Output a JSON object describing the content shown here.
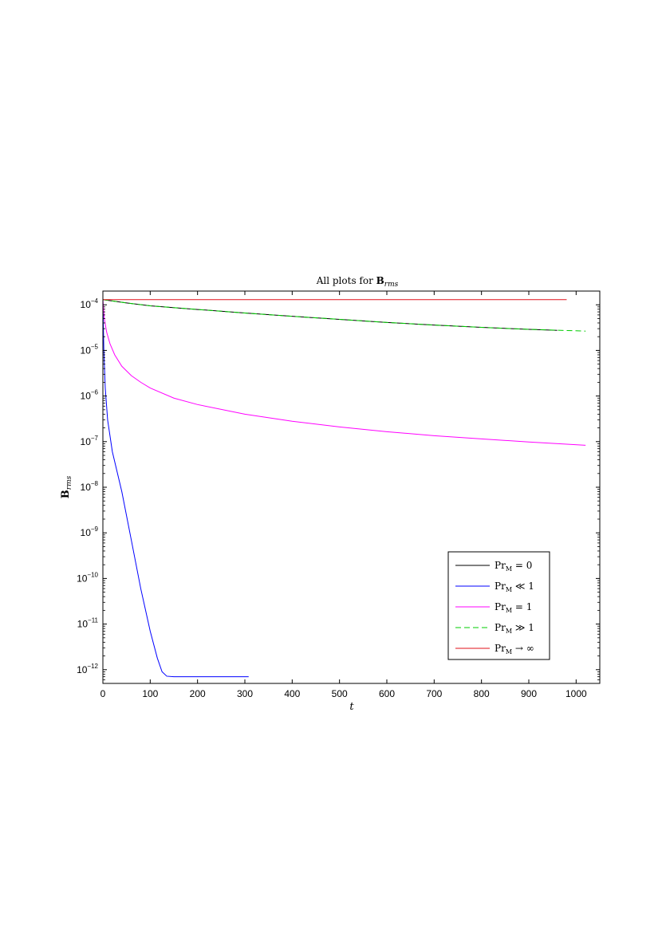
{
  "chart_data": {
    "type": "line",
    "title": {
      "prefix": "All plots for ",
      "symbol": "B",
      "subscript": "rms"
    },
    "xlabel": "t",
    "ylabel": {
      "symbol": "B",
      "subscript": "rms"
    },
    "xlim": [
      0,
      1050
    ],
    "ylim": [
      5e-13,
      0.0002
    ],
    "yscale": "log",
    "grid": false,
    "legend_position": "bottom-right",
    "x_ticks": [
      0,
      100,
      200,
      300,
      400,
      500,
      600,
      700,
      800,
      900,
      1000
    ],
    "x_tick_labels": [
      "0",
      "100",
      "200",
      "300",
      "400",
      "500",
      "600",
      "700",
      "800",
      "900",
      "1000"
    ],
    "y_ticks": [
      {
        "value": 0.0001,
        "base": "10",
        "exp": "−4"
      },
      {
        "value": 1e-05,
        "base": "10",
        "exp": "−5"
      },
      {
        "value": 1e-06,
        "base": "10",
        "exp": "−6"
      },
      {
        "value": 1e-07,
        "base": "10",
        "exp": "−7"
      },
      {
        "value": 1e-08,
        "base": "10",
        "exp": "−8"
      },
      {
        "value": 1e-09,
        "base": "10",
        "exp": "−9"
      },
      {
        "value": 1e-10,
        "base": "10",
        "exp": "−10"
      },
      {
        "value": 1e-11,
        "base": "10",
        "exp": "−11"
      },
      {
        "value": 1e-12,
        "base": "10",
        "exp": "−12"
      }
    ],
    "series": [
      {
        "name": "Pr_M = 0",
        "legend": {
          "pr": "Pr",
          "sub": "M",
          "rel": "= 0"
        },
        "color": "#000000",
        "dash": "solid",
        "points": [
          [
            0,
            0.00013
          ],
          [
            50,
            0.00011
          ],
          [
            100,
            9.5e-05
          ],
          [
            200,
            7.9e-05
          ],
          [
            300,
            6.6e-05
          ],
          [
            400,
            5.6e-05
          ],
          [
            500,
            4.8e-05
          ],
          [
            600,
            4.1e-05
          ],
          [
            700,
            3.6e-05
          ],
          [
            800,
            3.2e-05
          ],
          [
            900,
            2.9e-05
          ],
          [
            960,
            2.75e-05
          ]
        ]
      },
      {
        "name": "Pr_M ≪ 1",
        "legend": {
          "pr": "Pr",
          "sub": "M",
          "rel": "≪ 1"
        },
        "color": "#0000ff",
        "dash": "solid",
        "points": [
          [
            0,
            0.00013
          ],
          [
            2,
            1e-05
          ],
          [
            5,
            1.5e-06
          ],
          [
            10,
            3e-07
          ],
          [
            20,
            6e-08
          ],
          [
            40,
            8e-09
          ],
          [
            60,
            7e-10
          ],
          [
            80,
            6e-11
          ],
          [
            100,
            7e-12
          ],
          [
            115,
            1.8e-12
          ],
          [
            125,
            9e-13
          ],
          [
            135,
            7.2e-13
          ],
          [
            150,
            7e-13
          ],
          [
            200,
            7e-13
          ],
          [
            308,
            7e-13
          ]
        ]
      },
      {
        "name": "Pr_M = 1",
        "legend": {
          "pr": "Pr",
          "sub": "M",
          "rel": "= 1"
        },
        "color": "#ff00ff",
        "dash": "solid",
        "points": [
          [
            0,
            0.00013
          ],
          [
            3,
            5e-05
          ],
          [
            8,
            2.5e-05
          ],
          [
            15,
            1.4e-05
          ],
          [
            25,
            8e-06
          ],
          [
            40,
            4.5e-06
          ],
          [
            60,
            2.8e-06
          ],
          [
            80,
            2e-06
          ],
          [
            100,
            1.5e-06
          ],
          [
            150,
            9e-07
          ],
          [
            200,
            6.5e-07
          ],
          [
            300,
            4e-07
          ],
          [
            400,
            2.8e-07
          ],
          [
            500,
            2.1e-07
          ],
          [
            600,
            1.65e-07
          ],
          [
            700,
            1.35e-07
          ],
          [
            800,
            1.15e-07
          ],
          [
            900,
            9.8e-08
          ],
          [
            1020,
            8.3e-08
          ]
        ]
      },
      {
        "name": "Pr_M ≫ 1",
        "legend": {
          "pr": "Pr",
          "sub": "M",
          "rel": "≫ 1"
        },
        "color": "#00cc00",
        "dash": "dashed",
        "points": [
          [
            0,
            0.00013
          ],
          [
            50,
            0.00011
          ],
          [
            100,
            9.5e-05
          ],
          [
            200,
            7.9e-05
          ],
          [
            300,
            6.6e-05
          ],
          [
            400,
            5.6e-05
          ],
          [
            500,
            4.8e-05
          ],
          [
            600,
            4.1e-05
          ],
          [
            700,
            3.6e-05
          ],
          [
            800,
            3.2e-05
          ],
          [
            900,
            2.9e-05
          ],
          [
            1020,
            2.65e-05
          ]
        ]
      },
      {
        "name": "Pr_M → ∞",
        "legend": {
          "pr": "Pr",
          "sub": "M",
          "rel": "→ ∞"
        },
        "color": "#e0101a",
        "dash": "solid",
        "points": [
          [
            0,
            0.00013
          ],
          [
            980,
            0.00013
          ]
        ]
      }
    ]
  }
}
